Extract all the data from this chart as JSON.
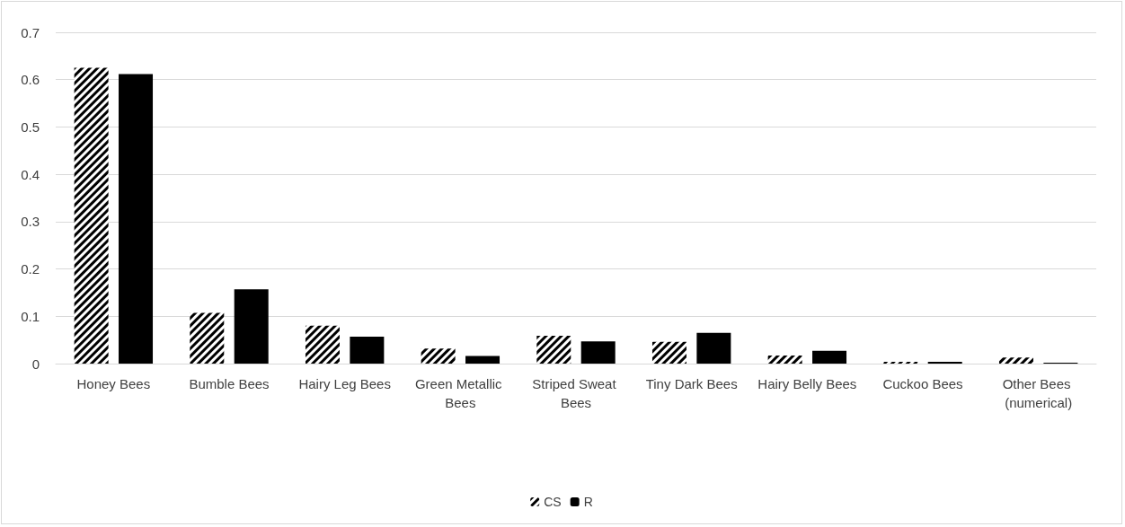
{
  "chart_data": {
    "type": "bar",
    "categories": [
      "Honey Bees",
      "Bumble Bees",
      "Hairy Leg Bees",
      "Green Metallic Bees",
      "Striped Sweat Bees",
      "Tiny Dark Bees",
      "Hairy Belly Bees",
      "Cuckoo Bees",
      "Other Bees (numerical)"
    ],
    "series": [
      {
        "name": "CS",
        "color": "#000000",
        "values": [
          0.625,
          0.107,
          0.08,
          0.032,
          0.059,
          0.046,
          0.017,
          0.004,
          0.013
        ]
      },
      {
        "name": "R",
        "color": "#000000",
        "values": [
          0.612,
          0.157,
          0.057,
          0.016,
          0.047,
          0.065,
          0.027,
          0.004,
          0.002
        ]
      }
    ],
    "ylim": [
      0,
      0.7
    ],
    "yticks": [
      0,
      0.1,
      0.2,
      0.3,
      0.4,
      0.5,
      0.6,
      0.7
    ],
    "grid": "y",
    "legend": "bottom"
  }
}
